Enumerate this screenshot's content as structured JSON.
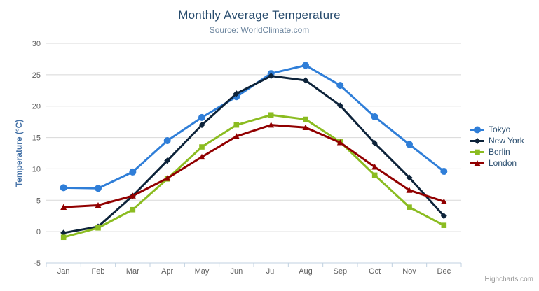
{
  "header": {
    "title": "Monthly Average Temperature",
    "subtitle": "Source: WorldClimate.com"
  },
  "context_menu": {
    "icon": "hamburger-icon"
  },
  "credits": {
    "text": "Highcharts.com"
  },
  "colors": {
    "title": "#274b6d",
    "subtitle": "#6D869F",
    "yaxis_title": "#4572A7",
    "axis_labels": "#606060",
    "gridline": "#D8D8D8",
    "axis_line": "#C0D0E0",
    "credits": "#909090"
  },
  "chart_data": {
    "type": "line",
    "title": "Monthly Average Temperature",
    "subtitle": "Source: WorldClimate.com",
    "categories": [
      "Jan",
      "Feb",
      "Mar",
      "Apr",
      "May",
      "Jun",
      "Jul",
      "Aug",
      "Sep",
      "Oct",
      "Nov",
      "Dec"
    ],
    "series": [
      {
        "name": "Tokyo",
        "color": "#2f7ed8",
        "marker": "circle",
        "values": [
          7.0,
          6.9,
          9.5,
          14.5,
          18.2,
          21.5,
          25.2,
          26.5,
          23.3,
          18.3,
          13.9,
          9.6
        ]
      },
      {
        "name": "New York",
        "color": "#0d233a",
        "marker": "diamond",
        "values": [
          -0.2,
          0.8,
          5.7,
          11.3,
          17.0,
          22.0,
          24.8,
          24.1,
          20.1,
          14.1,
          8.6,
          2.5
        ]
      },
      {
        "name": "Berlin",
        "color": "#8bbc21",
        "marker": "square",
        "values": [
          -0.9,
          0.6,
          3.5,
          8.4,
          13.5,
          17.0,
          18.6,
          17.9,
          14.3,
          9.0,
          3.9,
          1.0
        ]
      },
      {
        "name": "London",
        "color": "#910000",
        "marker": "triangle",
        "values": [
          3.9,
          4.2,
          5.7,
          8.5,
          11.9,
          15.2,
          17.0,
          16.6,
          14.2,
          10.3,
          6.6,
          4.8
        ]
      }
    ],
    "xlabel": "",
    "ylabel": "Temperature (°C)",
    "ylim": [
      -5,
      30
    ],
    "ytick_step": 5,
    "grid": true,
    "legend_position": "right"
  }
}
